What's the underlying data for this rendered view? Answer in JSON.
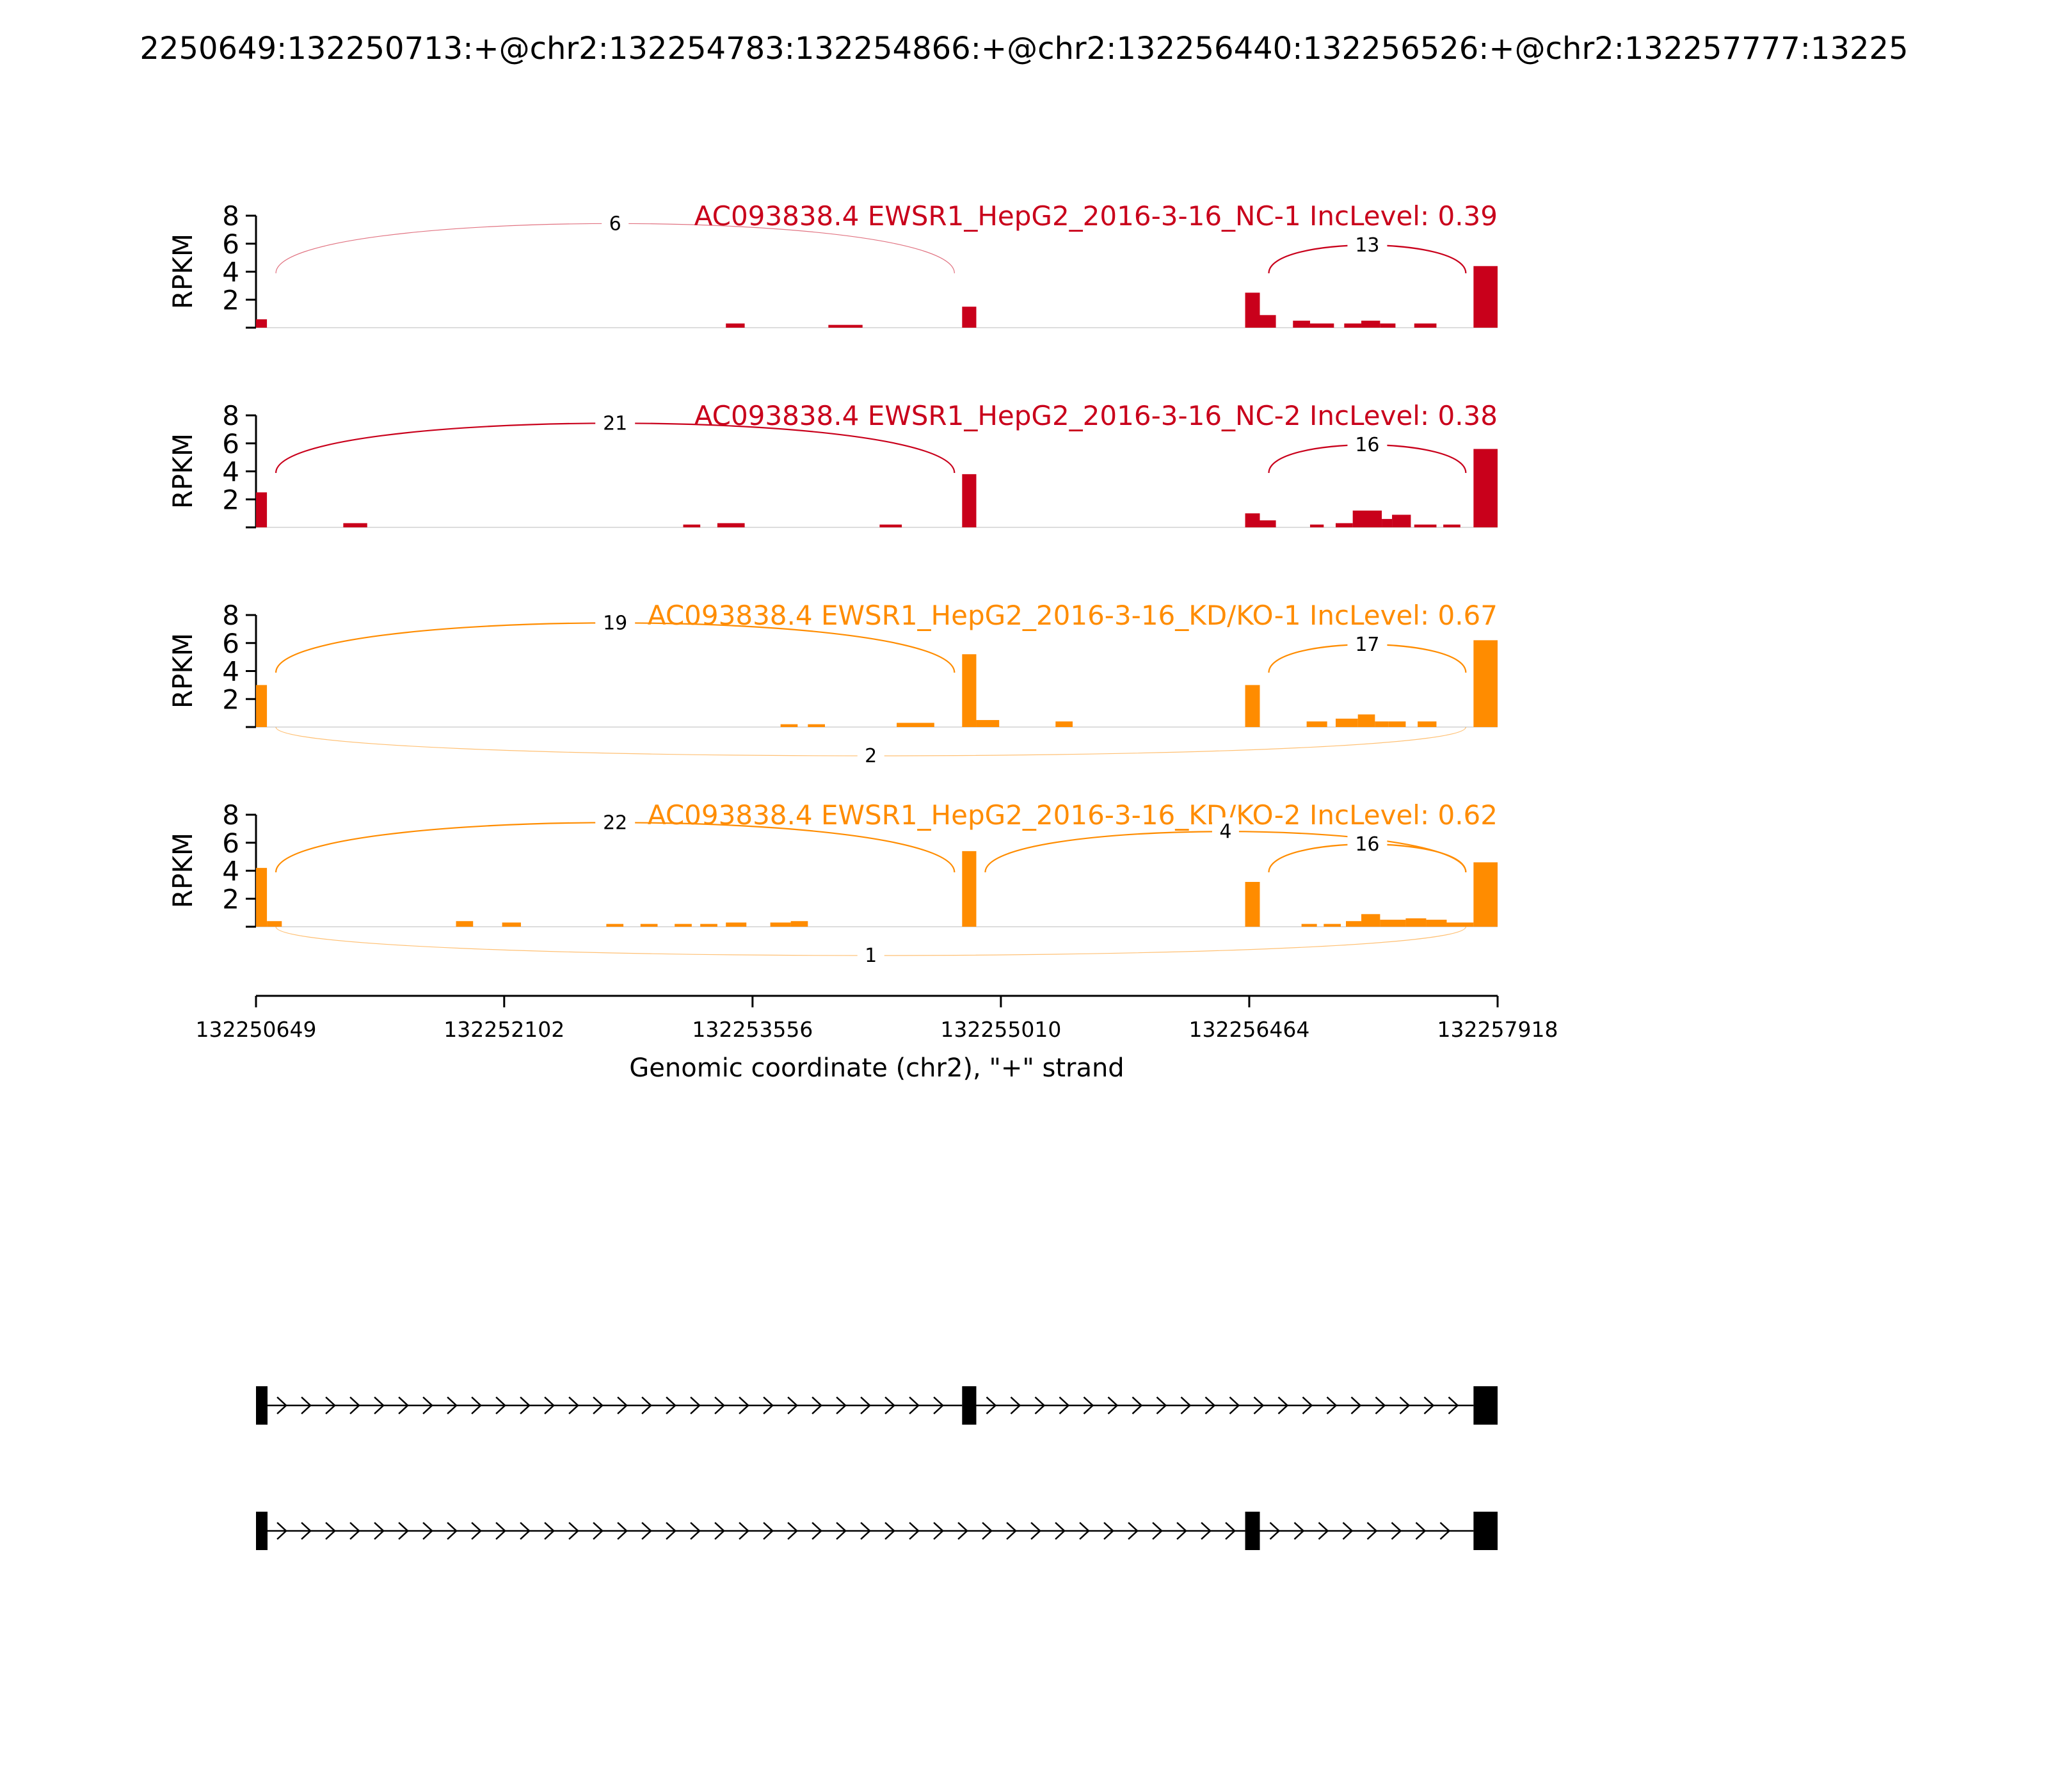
{
  "title": "2250649:132250713:+@chr2:132254783:132254866:+@chr2:132256440:132256526:+@chr2:132257777:13225",
  "colors": {
    "nc": "#c9001b",
    "kd": "#ff8c00",
    "axis": "#000000",
    "gene": "#000000"
  },
  "chart_data": {
    "type": "sashimi",
    "xlabel": "Genomic coordinate (chr2), \"+\" strand",
    "xlim": [
      132250649,
      132257918
    ],
    "xticks": [
      "132250649",
      "132252102",
      "132253556",
      "132255010",
      "132256464",
      "132257918"
    ],
    "ylabel": "RPKM",
    "ylim": [
      0,
      8
    ],
    "yticks": [
      "2",
      "4",
      "6",
      "8"
    ],
    "exons": [
      {
        "start": 132250649,
        "end": 132250713
      },
      {
        "start": 132254783,
        "end": 132254866
      },
      {
        "start": 132256440,
        "end": 132256526
      },
      {
        "start": 132257777,
        "end": 132257918
      }
    ],
    "tracks": [
      {
        "label": "AC093838.4 EWSR1_HepG2_2016-3-16_NC-1 IncLevel: 0.39",
        "color_key": "nc",
        "coverage": [
          {
            "s": 132250649,
            "e": 132250713,
            "v": 0.6
          },
          {
            "s": 132253400,
            "e": 132253510,
            "v": 0.3
          },
          {
            "s": 132254000,
            "e": 132254200,
            "v": 0.2
          },
          {
            "s": 132254783,
            "e": 132254866,
            "v": 1.5
          },
          {
            "s": 132256440,
            "e": 132256526,
            "v": 2.5
          },
          {
            "s": 132256526,
            "e": 132256620,
            "v": 0.9
          },
          {
            "s": 132256720,
            "e": 132256820,
            "v": 0.5
          },
          {
            "s": 132256820,
            "e": 132256960,
            "v": 0.3
          },
          {
            "s": 132257020,
            "e": 132257120,
            "v": 0.3
          },
          {
            "s": 132257120,
            "e": 132257230,
            "v": 0.5
          },
          {
            "s": 132257230,
            "e": 132257320,
            "v": 0.3
          },
          {
            "s": 132257430,
            "e": 132257560,
            "v": 0.3
          },
          {
            "s": 132257777,
            "e": 132257918,
            "v": 4.4
          }
        ],
        "junctions": [
          {
            "start": 132250713,
            "end": 132254783,
            "count": "6",
            "side": "above",
            "thin": true
          },
          {
            "start": 132256526,
            "end": 132257777,
            "count": "13",
            "side": "above",
            "thin": false
          }
        ]
      },
      {
        "label": "AC093838.4 EWSR1_HepG2_2016-3-16_NC-2 IncLevel: 0.38",
        "color_key": "nc",
        "coverage": [
          {
            "s": 132250649,
            "e": 132250713,
            "v": 2.5
          },
          {
            "s": 132251160,
            "e": 132251300,
            "v": 0.3
          },
          {
            "s": 132253150,
            "e": 132253250,
            "v": 0.2
          },
          {
            "s": 132253350,
            "e": 132253510,
            "v": 0.3
          },
          {
            "s": 132254300,
            "e": 132254430,
            "v": 0.2
          },
          {
            "s": 132254783,
            "e": 132254866,
            "v": 3.8
          },
          {
            "s": 132256440,
            "e": 132256526,
            "v": 1.0
          },
          {
            "s": 132256526,
            "e": 132256620,
            "v": 0.5
          },
          {
            "s": 132256820,
            "e": 132256900,
            "v": 0.2
          },
          {
            "s": 132256970,
            "e": 132257070,
            "v": 0.3
          },
          {
            "s": 132257070,
            "e": 132257240,
            "v": 1.2
          },
          {
            "s": 132257240,
            "e": 132257300,
            "v": 0.6
          },
          {
            "s": 132257300,
            "e": 132257410,
            "v": 0.9
          },
          {
            "s": 132257430,
            "e": 132257560,
            "v": 0.2
          },
          {
            "s": 132257600,
            "e": 132257700,
            "v": 0.2
          },
          {
            "s": 132257777,
            "e": 132257918,
            "v": 5.6
          }
        ],
        "junctions": [
          {
            "start": 132250713,
            "end": 132254783,
            "count": "21",
            "side": "above",
            "thin": false
          },
          {
            "start": 132256526,
            "end": 132257777,
            "count": "16",
            "side": "above",
            "thin": false
          }
        ]
      },
      {
        "label": "AC093838.4 EWSR1_HepG2_2016-3-16_KD/KO-1 IncLevel: 0.67",
        "color_key": "kd",
        "coverage": [
          {
            "s": 132250649,
            "e": 132250713,
            "v": 3.0
          },
          {
            "s": 132253720,
            "e": 132253820,
            "v": 0.2
          },
          {
            "s": 132253880,
            "e": 132253980,
            "v": 0.2
          },
          {
            "s": 132254400,
            "e": 132254620,
            "v": 0.3
          },
          {
            "s": 132254783,
            "e": 132254866,
            "v": 5.2
          },
          {
            "s": 132254866,
            "e": 132255000,
            "v": 0.5
          },
          {
            "s": 132255330,
            "e": 132255430,
            "v": 0.4
          },
          {
            "s": 132256440,
            "e": 132256526,
            "v": 3.0
          },
          {
            "s": 132256800,
            "e": 132256920,
            "v": 0.4
          },
          {
            "s": 132256970,
            "e": 132257100,
            "v": 0.6
          },
          {
            "s": 132257100,
            "e": 132257200,
            "v": 0.9
          },
          {
            "s": 132257200,
            "e": 132257280,
            "v": 0.4
          },
          {
            "s": 132257280,
            "e": 132257380,
            "v": 0.4
          },
          {
            "s": 132257450,
            "e": 132257560,
            "v": 0.4
          },
          {
            "s": 132257777,
            "e": 132257918,
            "v": 6.2
          }
        ],
        "junctions": [
          {
            "start": 132250713,
            "end": 132254783,
            "count": "19",
            "side": "above",
            "thin": false
          },
          {
            "start": 132256526,
            "end": 132257777,
            "count": "17",
            "side": "above",
            "thin": false
          },
          {
            "start": 132250713,
            "end": 132257777,
            "count": "2",
            "side": "below",
            "thin": true
          }
        ]
      },
      {
        "label": "AC093838.4 EWSR1_HepG2_2016-3-16_KD/KO-2 IncLevel: 0.62",
        "color_key": "kd",
        "coverage": [
          {
            "s": 132250649,
            "e": 132250713,
            "v": 4.2
          },
          {
            "s": 132250713,
            "e": 132250800,
            "v": 0.4
          },
          {
            "s": 132251820,
            "e": 132251920,
            "v": 0.4
          },
          {
            "s": 132252090,
            "e": 132252200,
            "v": 0.3
          },
          {
            "s": 132252700,
            "e": 132252800,
            "v": 0.2
          },
          {
            "s": 132252900,
            "e": 132253000,
            "v": 0.2
          },
          {
            "s": 132253100,
            "e": 132253200,
            "v": 0.2
          },
          {
            "s": 132253250,
            "e": 132253350,
            "v": 0.2
          },
          {
            "s": 132253400,
            "e": 132253520,
            "v": 0.3
          },
          {
            "s": 132253660,
            "e": 132253780,
            "v": 0.3
          },
          {
            "s": 132253780,
            "e": 132253880,
            "v": 0.4
          },
          {
            "s": 132254783,
            "e": 132254866,
            "v": 5.4
          },
          {
            "s": 132256440,
            "e": 132256526,
            "v": 3.2
          },
          {
            "s": 132256770,
            "e": 132256860,
            "v": 0.2
          },
          {
            "s": 132256900,
            "e": 132257000,
            "v": 0.2
          },
          {
            "s": 132257030,
            "e": 132257120,
            "v": 0.4
          },
          {
            "s": 132257120,
            "e": 132257230,
            "v": 0.9
          },
          {
            "s": 132257230,
            "e": 132257380,
            "v": 0.5
          },
          {
            "s": 132257380,
            "e": 132257500,
            "v": 0.6
          },
          {
            "s": 132257500,
            "e": 132257620,
            "v": 0.5
          },
          {
            "s": 132257620,
            "e": 132257777,
            "v": 0.3
          },
          {
            "s": 132257777,
            "e": 132257918,
            "v": 4.6
          }
        ],
        "junctions": [
          {
            "start": 132250713,
            "end": 132254783,
            "count": "22",
            "side": "above",
            "thin": false
          },
          {
            "start": 132254866,
            "end": 132257777,
            "count": "4",
            "side": "above",
            "thin": false
          },
          {
            "start": 132256526,
            "end": 132257777,
            "count": "16",
            "side": "above",
            "thin": false
          },
          {
            "start": 132250713,
            "end": 132257777,
            "count": "1",
            "side": "below",
            "thin": true
          }
        ]
      }
    ],
    "isoforms": [
      {
        "exons": [
          [
            132250649,
            132250713
          ],
          [
            132254783,
            132254866
          ],
          [
            132257777,
            132257918
          ]
        ]
      },
      {
        "exons": [
          [
            132250649,
            132250713
          ],
          [
            132256440,
            132256526
          ],
          [
            132257777,
            132257918
          ]
        ]
      }
    ]
  }
}
